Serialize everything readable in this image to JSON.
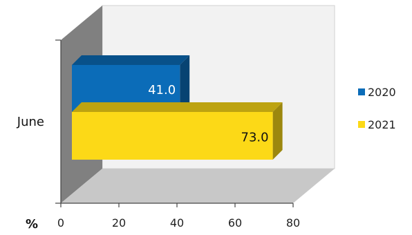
{
  "chart_data": {
    "type": "bar",
    "orientation": "horizontal",
    "three_d": true,
    "categories": [
      "June"
    ],
    "series": [
      {
        "name": "2020",
        "values": [
          41.0
        ],
        "color": "#0B6CB8",
        "label_color": "#ffffff"
      },
      {
        "name": "2021",
        "values": [
          73.0
        ],
        "color": "#FCD917",
        "label_color": "#111111"
      }
    ],
    "xlim": [
      0,
      80
    ],
    "xticks": [
      "0",
      "20",
      "40",
      "60",
      "80"
    ],
    "xlabel": "%",
    "ylabel": "",
    "title": "",
    "legend": "right",
    "grid": false
  }
}
